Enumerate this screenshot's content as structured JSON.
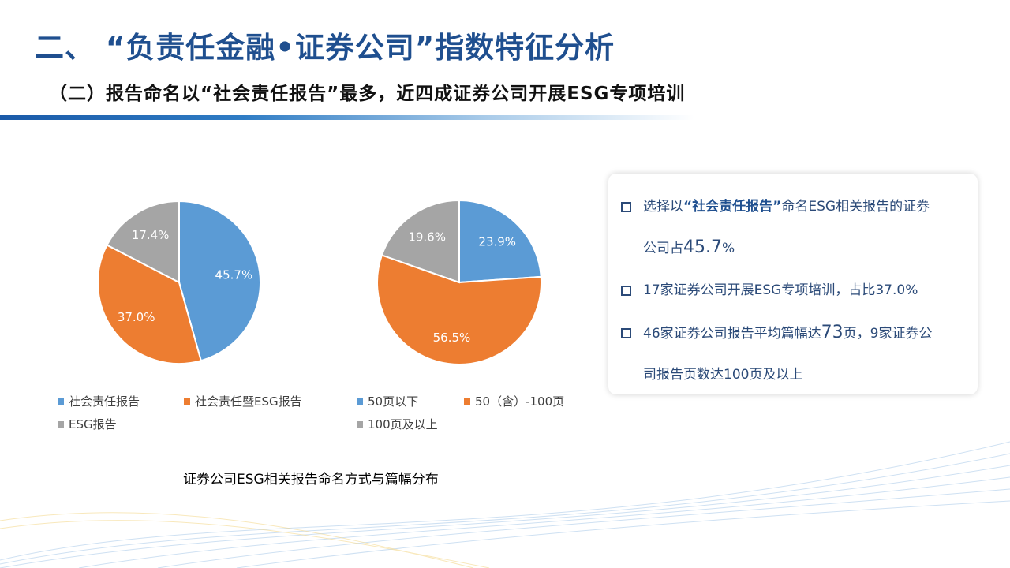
{
  "title": "二、 “负责任金融•证券公司”指数特征分析",
  "subtitle": "（二）报告命名以“社会责任报告”最多，近四成证券公司开展ESG专项培训",
  "caption": "证券公司ESG相关报告命名方式与篇幅分布",
  "chart_data": [
    {
      "type": "pie",
      "categories": [
        "社会责任报告",
        "社会责任暨ESG报告",
        "ESG报告"
      ],
      "values": [
        45.7,
        37.0,
        17.4
      ],
      "labels": [
        "45.7%",
        "37.0%",
        "17.4%"
      ],
      "colors": [
        "#5b9bd5",
        "#ed7d31",
        "#a5a5a5"
      ],
      "legend_position": "bottom"
    },
    {
      "type": "pie",
      "categories": [
        "50页以下",
        "50（含）-100页",
        "100页及以上"
      ],
      "values": [
        23.9,
        56.5,
        19.6
      ],
      "labels": [
        "23.9%",
        "56.5%",
        "19.6%"
      ],
      "colors": [
        "#5b9bd5",
        "#ed7d31",
        "#a5a5a5"
      ],
      "legend_position": "bottom"
    }
  ],
  "bullets": {
    "b1_pre": "选择以",
    "b1_bold": "“社会责任报告”",
    "b1_mid": "命名ESG相关报告的证券",
    "b1_line2": "公司占",
    "b1_big": "45.7",
    "b1_end": "%",
    "b2": "17家证券公司开展ESG专项培训，占比37.0%",
    "b3_pre": "46家证券公司报告平均篇幅达",
    "b3_big": "73",
    "b3_mid": "页，9家证券公",
    "b3_line2": "司报告页数达100页及以上"
  },
  "colors": {
    "accent": "#1f4f8f",
    "blue": "#5b9bd5",
    "orange": "#ed7d31",
    "gray": "#a5a5a5"
  }
}
